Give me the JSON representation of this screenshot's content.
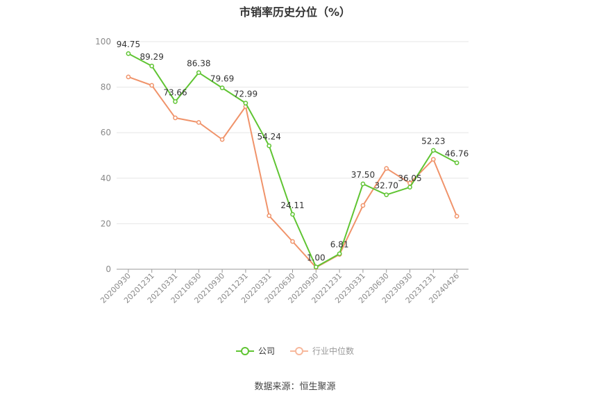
{
  "chart_data": {
    "type": "line",
    "title": "市销率历史分位（%）",
    "x": [
      "20200930",
      "20201231",
      "20210331",
      "20210630",
      "20210930",
      "20211231",
      "20220331",
      "20220630",
      "20220930",
      "20221231",
      "20230331",
      "20230630",
      "20230930",
      "20231231",
      "20240426"
    ],
    "y_ticks": [
      "0",
      "20",
      "40",
      "60",
      "80",
      "100"
    ],
    "ylim": [
      0,
      100
    ],
    "grid": true,
    "legend_position": "bottom",
    "series": [
      {
        "name": "公司",
        "color": "#5fc432",
        "values": [
          94.75,
          89.29,
          73.66,
          86.38,
          79.69,
          72.99,
          54.24,
          24.11,
          1.0,
          6.81,
          37.5,
          32.7,
          36.05,
          52.23,
          46.76
        ],
        "labels": [
          "94.75",
          "89.29",
          "73.66",
          "86.38",
          "79.69",
          "72.99",
          "54.24",
          "24.11",
          "1.00",
          "6.81",
          "37.50",
          "32.70",
          "36.05",
          "52.23",
          "46.76"
        ]
      },
      {
        "name": "行业中位数",
        "color": "#f0936a",
        "values": [
          84.5,
          80.8,
          66.5,
          64.5,
          57.0,
          71.5,
          23.5,
          12.2,
          0.8,
          6.5,
          28.0,
          44.3,
          37.8,
          48.3,
          23.3
        ]
      }
    ]
  },
  "source": "数据来源：恒生聚源"
}
